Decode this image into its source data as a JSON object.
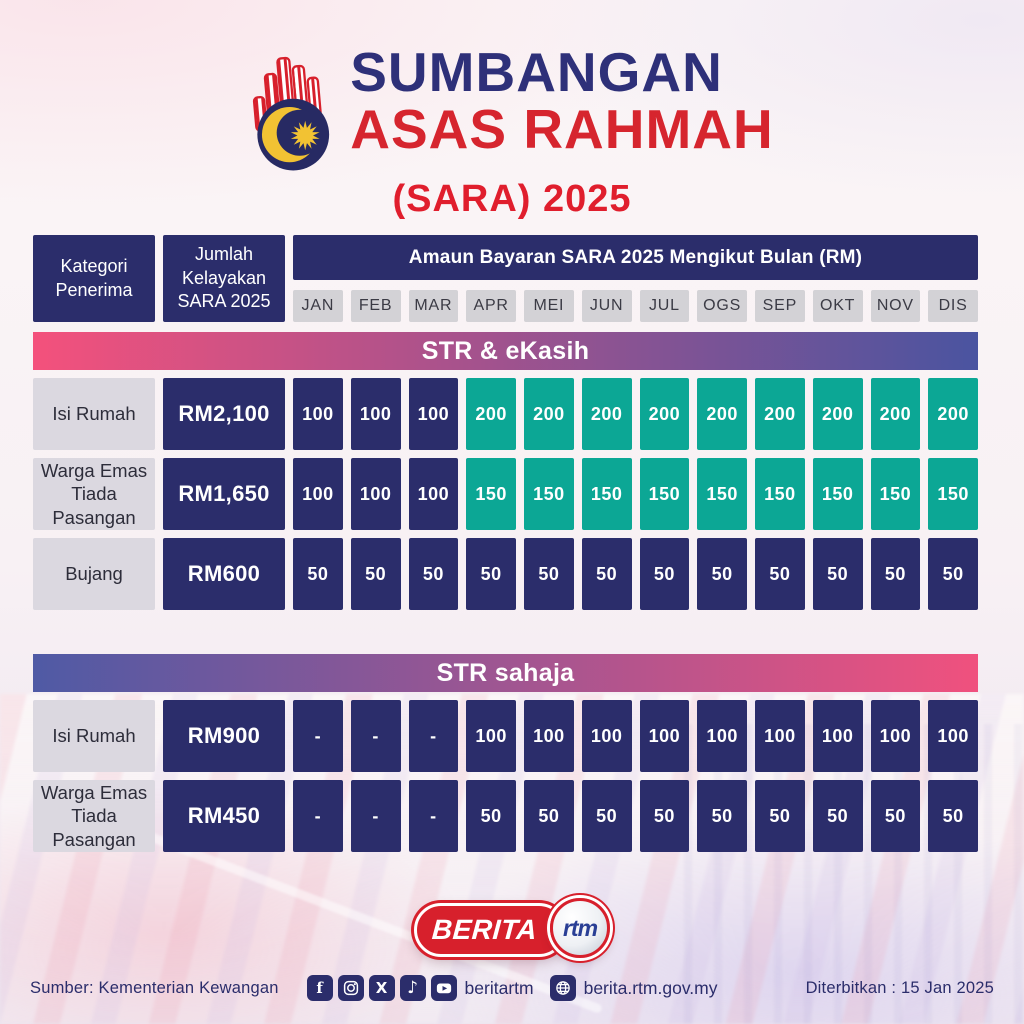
{
  "title": {
    "line1": "SUMBANGAN",
    "line2": "ASAS RAHMAH",
    "line3": "(SARA) 2025"
  },
  "table": {
    "col1_header": "Kategori Penerima",
    "col2_header": "Jumlah Kelayakan SARA 2025",
    "amaun_header": "Amaun Bayaran SARA 2025 Mengikut Bulan (RM)",
    "months": [
      "JAN",
      "FEB",
      "MAR",
      "APR",
      "MEI",
      "JUN",
      "JUL",
      "OGS",
      "SEP",
      "OKT",
      "NOV",
      "DIS"
    ]
  },
  "sections": [
    {
      "title": "STR & eKasih",
      "gradient": [
        "#f4517c",
        "#4a54a0"
      ],
      "rows": [
        {
          "category": "Isi Rumah",
          "eligibility": "RM2,100",
          "values": [
            "100",
            "100",
            "100",
            "200",
            "200",
            "200",
            "200",
            "200",
            "200",
            "200",
            "200",
            "200"
          ],
          "teal_start_index": 3
        },
        {
          "category": "Warga Emas Tiada Pasangan",
          "eligibility": "RM1,650",
          "values": [
            "100",
            "100",
            "100",
            "150",
            "150",
            "150",
            "150",
            "150",
            "150",
            "150",
            "150",
            "150"
          ],
          "teal_start_index": 3
        },
        {
          "category": "Bujang",
          "eligibility": "RM600",
          "values": [
            "50",
            "50",
            "50",
            "50",
            "50",
            "50",
            "50",
            "50",
            "50",
            "50",
            "50",
            "50"
          ],
          "teal_start_index": null
        }
      ]
    },
    {
      "title": "STR sahaja",
      "gradient": [
        "#4f5aa5",
        "#f0517e"
      ],
      "rows": [
        {
          "category": "Isi Rumah",
          "eligibility": "RM900",
          "values": [
            "-",
            "-",
            "-",
            "100",
            "100",
            "100",
            "100",
            "100",
            "100",
            "100",
            "100",
            "100"
          ],
          "teal_start_index": null
        },
        {
          "category": "Warga Emas Tiada Pasangan",
          "eligibility": "RM450",
          "values": [
            "-",
            "-",
            "-",
            "50",
            "50",
            "50",
            "50",
            "50",
            "50",
            "50",
            "50",
            "50"
          ],
          "teal_start_index": null
        }
      ]
    }
  ],
  "logo": {
    "berita": "BERITA",
    "rtm": "rtm"
  },
  "footer": {
    "source": "Sumber: Kementerian Kewangan",
    "social_icons": [
      "facebook-icon",
      "instagram-icon",
      "x-icon",
      "tiktok-icon",
      "youtube-icon"
    ],
    "social_handle": "beritartm",
    "globe_icon": "globe-icon",
    "website": "berita.rtm.gov.my",
    "published": "Diterbitkan : 15 Jan 2025"
  },
  "colors": {
    "navy": "#2b2d6b",
    "teal": "#0ca795",
    "title_navy": "#2e3079",
    "title_red": "#d6252e",
    "sara_red": "#e01e2d",
    "logo_red": "#d7202c",
    "logo_navy": "#272a63",
    "logo_yellow": "#f2c233",
    "rtm_blue": "#2a3f95",
    "month_cell": "#d3d2d6",
    "category_cell": "#dbd8e0"
  }
}
